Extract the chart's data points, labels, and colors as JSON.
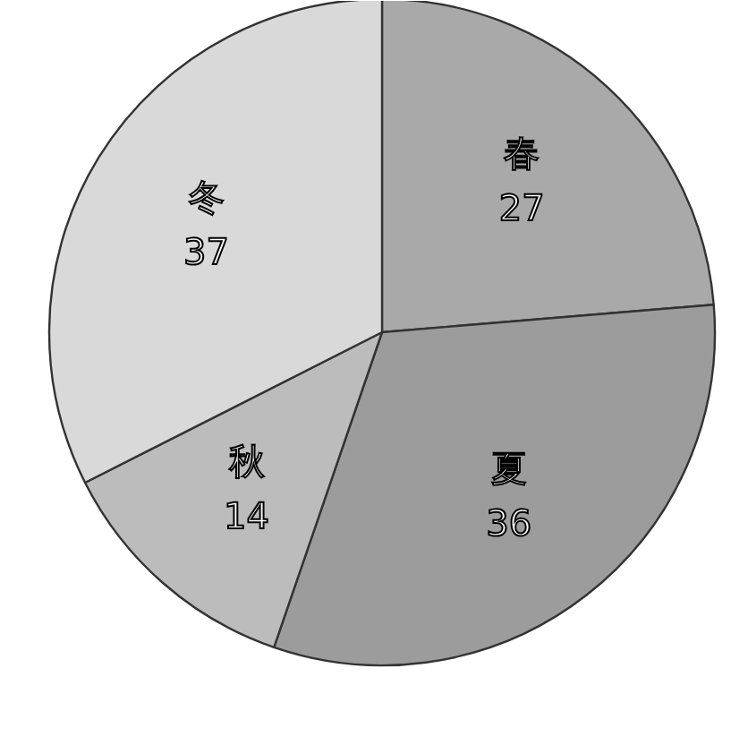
{
  "chart_data": {
    "type": "pie",
    "categories": [
      "春",
      "夏",
      "秋",
      "冬"
    ],
    "values": [
      27,
      36,
      14,
      37
    ],
    "colors": [
      "#a9a9a9",
      "#9c9c9c",
      "#bcbcbc",
      "#d9d9d9"
    ],
    "data_labels": true
  }
}
